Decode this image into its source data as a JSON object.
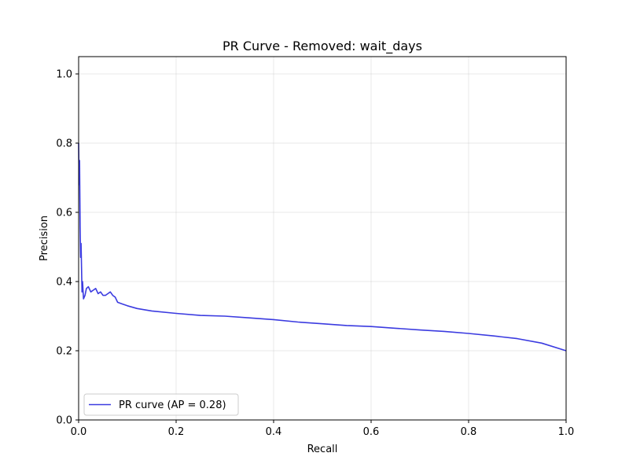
{
  "chart_data": {
    "type": "line",
    "title": "PR Curve - Removed: wait_days",
    "xlabel": "Recall",
    "ylabel": "Precision",
    "xlim": [
      0.0,
      1.0
    ],
    "ylim": [
      0.0,
      1.05
    ],
    "x_ticks": [
      0.0,
      0.2,
      0.4,
      0.6,
      0.8,
      1.0
    ],
    "x_tick_labels": [
      "0.0",
      "0.2",
      "0.4",
      "0.6",
      "0.8",
      "1.0"
    ],
    "y_ticks": [
      0.0,
      0.2,
      0.4,
      0.6,
      0.8,
      1.0
    ],
    "y_tick_labels": [
      "0.0",
      "0.2",
      "0.4",
      "0.6",
      "0.8",
      "1.0"
    ],
    "grid": true,
    "legend_position": "lower-left",
    "series": [
      {
        "name": "PR curve (AP = 0.28)",
        "color": "#3b3be0",
        "x": [
          0.0,
          0.001,
          0.002,
          0.003,
          0.004,
          0.005,
          0.006,
          0.007,
          0.008,
          0.01,
          0.013,
          0.016,
          0.02,
          0.025,
          0.03,
          0.035,
          0.04,
          0.045,
          0.05,
          0.055,
          0.06,
          0.065,
          0.07,
          0.075,
          0.08,
          0.09,
          0.1,
          0.12,
          0.15,
          0.2,
          0.25,
          0.3,
          0.35,
          0.4,
          0.45,
          0.5,
          0.55,
          0.6,
          0.65,
          0.7,
          0.75,
          0.8,
          0.85,
          0.9,
          0.95,
          1.0
        ],
        "y": [
          0.8,
          0.68,
          0.75,
          0.56,
          0.47,
          0.51,
          0.44,
          0.37,
          0.4,
          0.35,
          0.36,
          0.38,
          0.385,
          0.37,
          0.375,
          0.38,
          0.365,
          0.37,
          0.36,
          0.36,
          0.365,
          0.37,
          0.36,
          0.355,
          0.34,
          0.335,
          0.33,
          0.322,
          0.315,
          0.308,
          0.302,
          0.3,
          0.295,
          0.29,
          0.283,
          0.278,
          0.273,
          0.27,
          0.265,
          0.26,
          0.256,
          0.25,
          0.243,
          0.235,
          0.222,
          0.2
        ]
      }
    ]
  }
}
